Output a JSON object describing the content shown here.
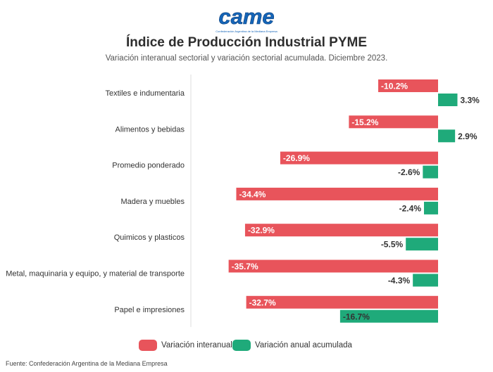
{
  "logo": {
    "text": "came",
    "subtext": "Confederación Argentina de la Mediana Empresa"
  },
  "title": "Índice de Producción Industrial PYME",
  "subtitle": "Variación interanual sectorial y variación sectorial acumulada. Diciembre 2023.",
  "colors": {
    "interanual": "#e8545b",
    "acumulada": "#1faa7a",
    "brand": "#1565b8"
  },
  "chart_data": {
    "type": "bar",
    "orientation": "horizontal",
    "categories": [
      "Textiles e indumentaria",
      "Alimentos y bebidas",
      "Promedio ponderado",
      "Madera y muebles",
      "Quimicos y plasticos",
      "Metal, maquinaria y equipo, y material de transporte",
      "Papel e impresiones"
    ],
    "series": [
      {
        "name": "Variación interanual",
        "values": [
          -10.2,
          -15.2,
          -26.9,
          -34.4,
          -32.9,
          -35.7,
          -32.7
        ],
        "labels": [
          "-10.2%",
          "-15.2%",
          "-26.9%",
          "-34.4%",
          "-32.9%",
          "-35.7%",
          "-32.7%"
        ]
      },
      {
        "name": "Variación anual acumulada",
        "values": [
          3.3,
          2.9,
          -2.6,
          -2.4,
          -5.5,
          -4.3,
          -16.7
        ],
        "labels": [
          "3.3%",
          "2.9%",
          "-2.6%",
          "-2.4%",
          "-5.5%",
          "-4.3%",
          "-16.7%"
        ]
      }
    ],
    "grid": false,
    "legend": "bottom-center"
  },
  "source": "Fuente: Confederación Argentina de la Mediana Empresa"
}
